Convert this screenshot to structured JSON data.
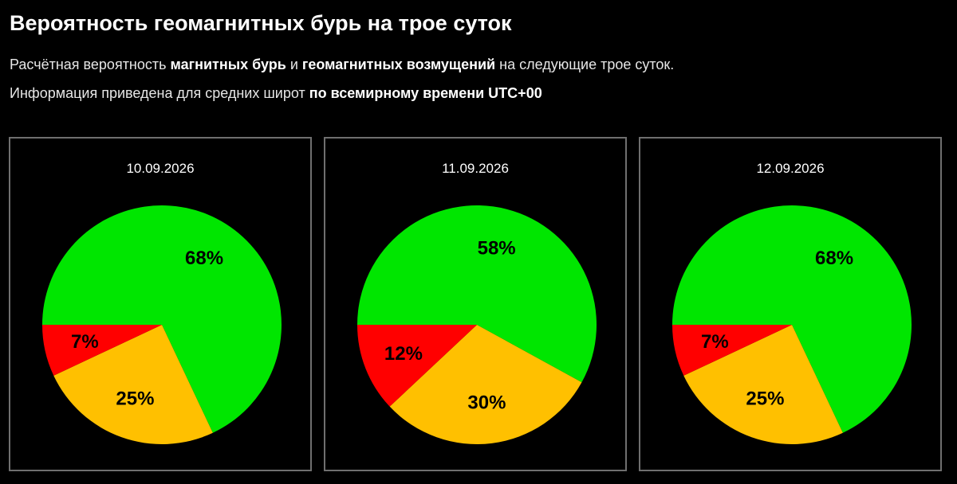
{
  "header": {
    "title": "Вероятность геомагнитных бурь на трое суток",
    "line1": {
      "t1": "Расчётная вероятность ",
      "b1": "магнитных бурь",
      "t2": " и ",
      "b2": "геомагнитных возмущений",
      "t3": " на следующие трое суток."
    },
    "line2": {
      "t1": "Информация приведена для средних широт ",
      "b1": "по всемирному времени UTC+00"
    }
  },
  "colors": {
    "green": "#00e600",
    "orange": "#ffc000",
    "red": "#ff0000",
    "background": "#000000",
    "panel_border": "#6f6f6f"
  },
  "chart_data": [
    {
      "type": "pie",
      "title": "10.09.2026",
      "slices": [
        {
          "label": "68%",
          "value": 68,
          "color": "#00e600"
        },
        {
          "label": "25%",
          "value": 25,
          "color": "#ffc000"
        },
        {
          "label": "7%",
          "value": 7,
          "color": "#ff0000"
        }
      ]
    },
    {
      "type": "pie",
      "title": "11.09.2026",
      "slices": [
        {
          "label": "58%",
          "value": 58,
          "color": "#00e600"
        },
        {
          "label": "30%",
          "value": 30,
          "color": "#ffc000"
        },
        {
          "label": "12%",
          "value": 12,
          "color": "#ff0000"
        }
      ]
    },
    {
      "type": "pie",
      "title": "12.09.2026",
      "slices": [
        {
          "label": "68%",
          "value": 68,
          "color": "#00e600"
        },
        {
          "label": "25%",
          "value": 25,
          "color": "#ffc000"
        },
        {
          "label": "7%",
          "value": 7,
          "color": "#ff0000"
        }
      ]
    }
  ]
}
